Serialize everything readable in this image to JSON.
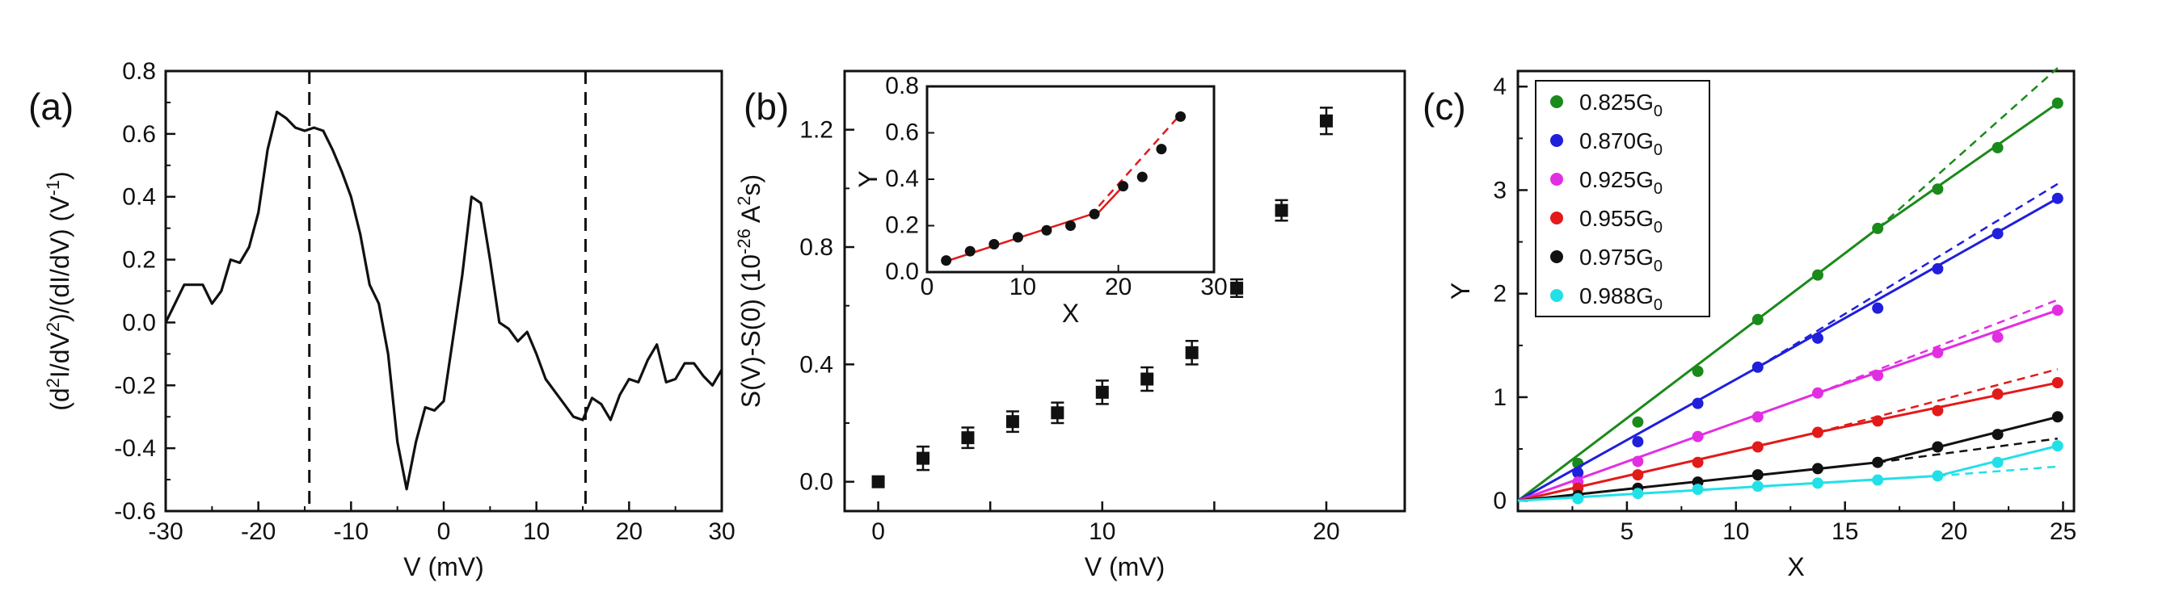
{
  "chart_data": [
    {
      "id": "a",
      "panel_label": "(a)",
      "type": "line",
      "xlabel": "V (mV)",
      "ylabel": "(d2I/dV2)/(dI/dV) (V-1)",
      "ylabel_parts": {
        "p1": "(d",
        "s1": "2",
        "p2": "I/dV",
        "s2": "2",
        "p3": ")/(dI/dV) (V",
        "s3": "-1",
        "p4": ")"
      },
      "xlim": [
        -30,
        30
      ],
      "ylim": [
        -0.6,
        0.8
      ],
      "xticks": [
        "-30",
        "-20",
        "-10",
        "0",
        "10",
        "20",
        "30"
      ],
      "yticks": [
        "-0.6",
        "-0.4",
        "-0.2",
        "0.0",
        "0.2",
        "0.4",
        "0.6",
        "0.8"
      ],
      "dashed_vlines": [
        -14.5,
        15.3
      ],
      "x": [
        -30,
        -29,
        -28,
        -27,
        -26,
        -25,
        -24,
        -23,
        -22,
        -21,
        -20,
        -19,
        -18,
        -17,
        -16,
        -15,
        -14,
        -13,
        -12,
        -11,
        -10,
        -9,
        -8,
        -7,
        -6,
        -5,
        -4,
        -3,
        -2,
        -1,
        0,
        1,
        2,
        3,
        4,
        5,
        6,
        7,
        8,
        9,
        10,
        11,
        12,
        13,
        14,
        15,
        16,
        17,
        18,
        19,
        20,
        21,
        22,
        23,
        24,
        25,
        26,
        27,
        28,
        29,
        30
      ],
      "y": [
        0.0,
        0.06,
        0.12,
        0.12,
        0.12,
        0.06,
        0.1,
        0.2,
        0.19,
        0.24,
        0.35,
        0.55,
        0.67,
        0.65,
        0.62,
        0.61,
        0.62,
        0.61,
        0.55,
        0.48,
        0.4,
        0.28,
        0.12,
        0.06,
        -0.1,
        -0.38,
        -0.53,
        -0.38,
        -0.27,
        -0.28,
        -0.25,
        -0.05,
        0.15,
        0.4,
        0.38,
        0.2,
        0.0,
        -0.02,
        -0.06,
        -0.03,
        -0.1,
        -0.18,
        -0.22,
        -0.26,
        -0.3,
        -0.31,
        -0.24,
        -0.26,
        -0.31,
        -0.23,
        -0.18,
        -0.19,
        -0.12,
        -0.07,
        -0.19,
        -0.18,
        -0.13,
        -0.13,
        -0.17,
        -0.2,
        -0.15
      ]
    },
    {
      "id": "b",
      "panel_label": "(b)",
      "type": "scatter",
      "xlabel": "V (mV)",
      "ylabel": "S(V)-S(0) (10-26 A2s)",
      "ylabel_parts": {
        "p1": "S(V)-S(0) (10",
        "s1": "-26",
        "p2": " A",
        "s2": "2",
        "p3": "s)"
      },
      "xlim": [
        -1.5,
        23.5
      ],
      "ylim": [
        -0.1,
        1.4
      ],
      "xticks": [
        "0",
        "10",
        "20"
      ],
      "xticks_minor": [
        "0",
        "5",
        "10",
        "15",
        "20"
      ],
      "yticks": [
        "0.0",
        "0.4",
        "0.8",
        "1.2"
      ],
      "x": [
        0,
        2,
        4,
        6,
        8,
        10,
        12,
        14,
        16,
        18,
        20
      ],
      "y": [
        0.0,
        0.08,
        0.15,
        0.205,
        0.235,
        0.305,
        0.35,
        0.44,
        0.66,
        0.925,
        1.23
      ],
      "err": [
        0.0,
        0.04,
        0.035,
        0.035,
        0.035,
        0.04,
        0.04,
        0.04,
        0.03,
        0.035,
        0.045
      ],
      "inset": {
        "type": "scatter",
        "xlabel": "X",
        "ylabel": "Y",
        "xlim": [
          0,
          30
        ],
        "ylim": [
          0.0,
          0.8
        ],
        "xticks": [
          "0",
          "10",
          "20",
          "30"
        ],
        "yticks": [
          "0.0",
          "0.2",
          "0.4",
          "0.6",
          "0.8"
        ],
        "x": [
          2,
          4.5,
          7,
          9.5,
          12.5,
          15,
          17.5,
          20.5,
          22.5,
          24.5,
          26.5
        ],
        "y": [
          0.05,
          0.09,
          0.12,
          0.15,
          0.18,
          0.2,
          0.25,
          0.37,
          0.41,
          0.53,
          0.67
        ],
        "fit_solid": [
          [
            1.5,
            0.04
          ],
          [
            18,
            0.26
          ],
          [
            20.5,
            0.37
          ]
        ],
        "fit_dashed": [
          [
            17,
            0.24
          ],
          [
            26.5,
            0.68
          ]
        ]
      }
    },
    {
      "id": "c",
      "panel_label": "(c)",
      "type": "scatter",
      "xlabel": "X",
      "ylabel": "Y",
      "xlim": [
        0,
        25.5
      ],
      "ylim": [
        -0.1,
        4.15
      ],
      "xticks": [
        "5",
        "10",
        "15",
        "20",
        "25"
      ],
      "yticks": [
        "0",
        "1",
        "2",
        "3",
        "4"
      ],
      "x": [
        2.75,
        5.5,
        8.25,
        11,
        13.75,
        16.5,
        19.25,
        22,
        24.75
      ],
      "series": [
        {
          "name": "0.825G0",
          "label": "0.825G",
          "sub": "0",
          "color": "#1a8a1a",
          "values": [
            0.36,
            0.76,
            1.25,
            1.75,
            2.18,
            2.63,
            3.01,
            3.41,
            3.84
          ],
          "fit_solid": [
            [
              0,
              0
            ],
            [
              16.5,
              2.63
            ],
            [
              24.75,
              3.84
            ]
          ],
          "fit_dashed": [
            [
              16.5,
              2.63
            ],
            [
              24.75,
              4.18
            ]
          ]
        },
        {
          "name": "0.870G0",
          "label": "0.870G",
          "sub": "0",
          "color": "#1f1fdc",
          "values": [
            0.27,
            0.57,
            0.94,
            1.29,
            1.57,
            1.86,
            2.24,
            2.58,
            2.92
          ],
          "fit_solid": [
            [
              0,
              0
            ],
            [
              11,
              1.29
            ],
            [
              24.75,
              2.92
            ]
          ],
          "fit_dashed": [
            [
              11,
              1.29
            ],
            [
              24.75,
              3.06
            ]
          ]
        },
        {
          "name": "0.925G0",
          "label": "0.925G",
          "sub": "0",
          "color": "#e22ee2",
          "values": [
            0.18,
            0.38,
            0.62,
            0.81,
            1.04,
            1.21,
            1.43,
            1.58,
            1.84
          ],
          "fit_solid": [
            [
              0,
              0
            ],
            [
              13.75,
              1.04
            ],
            [
              24.75,
              1.84
            ]
          ],
          "fit_dashed": [
            [
              13.75,
              1.04
            ],
            [
              24.75,
              1.94
            ]
          ]
        },
        {
          "name": "0.955G0",
          "label": "0.955G",
          "sub": "0",
          "color": "#e21a1a",
          "values": [
            0.12,
            0.25,
            0.37,
            0.52,
            0.66,
            0.77,
            0.87,
            1.03,
            1.14
          ],
          "fit_solid": [
            [
              0,
              0
            ],
            [
              13.75,
              0.66
            ],
            [
              24.75,
              1.14
            ]
          ],
          "fit_dashed": [
            [
              13.75,
              0.66
            ],
            [
              24.75,
              1.27
            ]
          ]
        },
        {
          "name": "0.975G0",
          "label": "0.975G",
          "sub": "0",
          "color": "#111111",
          "values": [
            0.05,
            0.12,
            0.18,
            0.25,
            0.31,
            0.37,
            0.52,
            0.64,
            0.81
          ],
          "fit_solid": [
            [
              0,
              0
            ],
            [
              16.5,
              0.37
            ],
            [
              24.75,
              0.81
            ]
          ],
          "fit_dashed": [
            [
              16.5,
              0.37
            ],
            [
              24.75,
              0.6
            ]
          ]
        },
        {
          "name": "0.988G0",
          "label": "0.988G",
          "sub": "0",
          "color": "#22e0e8",
          "values": [
            0.02,
            0.07,
            0.11,
            0.14,
            0.17,
            0.2,
            0.24,
            0.37,
            0.53
          ],
          "fit_solid": [
            [
              0,
              0
            ],
            [
              19.25,
              0.24
            ],
            [
              24.75,
              0.53
            ]
          ],
          "fit_dashed": [
            [
              19.25,
              0.24
            ],
            [
              24.75,
              0.33
            ]
          ]
        }
      ]
    }
  ]
}
